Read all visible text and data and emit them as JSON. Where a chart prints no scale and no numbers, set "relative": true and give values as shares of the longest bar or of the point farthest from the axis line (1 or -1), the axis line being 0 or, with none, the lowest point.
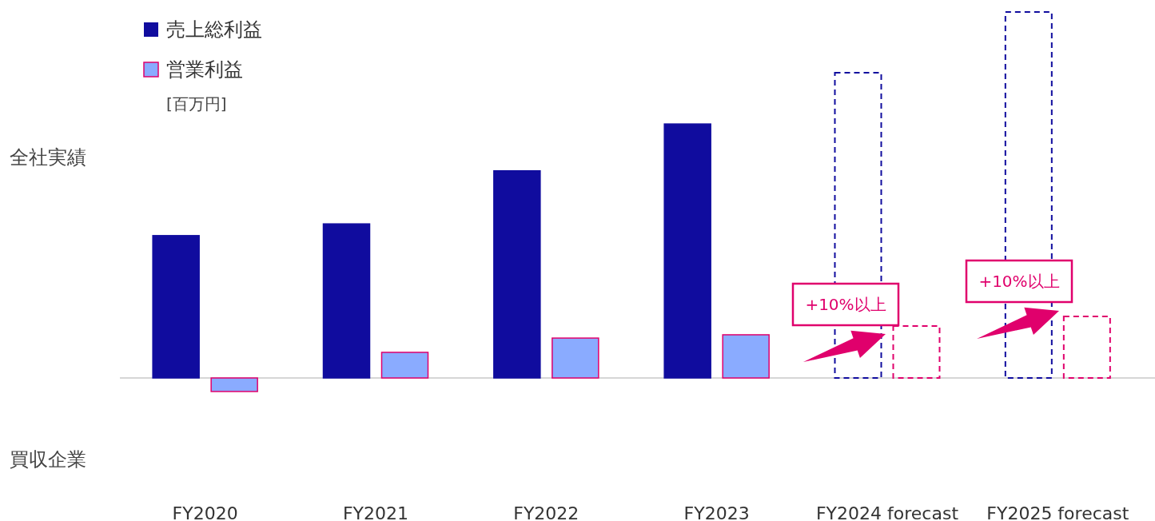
{
  "chart_data": {
    "type": "bar",
    "relative": true,
    "categories": [
      "FY2020",
      "FY2021",
      "FY2022",
      "FY2023",
      "FY2024 forecast",
      "FY2025 forecast"
    ],
    "series": [
      {
        "name": "売上総利益",
        "color": "#100c9e",
        "values": [
          0.389,
          0.421,
          0.566,
          0.694,
          null,
          null
        ]
      },
      {
        "name": "営業利益",
        "color": "#8aabff",
        "values": [
          -0.037,
          0.07,
          0.109,
          0.118,
          null,
          null
        ]
      },
      {
        "color": "#100c9e",
        "line_style": "dashed",
        "values": [
          null,
          null,
          null,
          null,
          0.834,
          1
        ]
      },
      {
        "color": "#e0006c",
        "line_style": "dashed",
        "values": [
          null,
          null,
          null,
          null,
          0.142,
          0.168
        ]
      }
    ],
    "legend": "top left",
    "annotations": [
      "[百万円]",
      "全社実績",
      "買収企業",
      "+10%以上",
      "+10%以上"
    ]
  }
}
